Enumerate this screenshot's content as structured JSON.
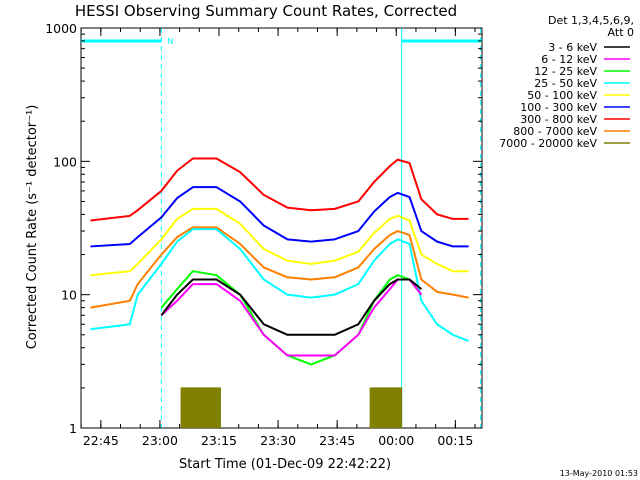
{
  "chart_data": {
    "type": "line",
    "title": "HESSI Observing Summary Count Rates, Corrected",
    "xlabel": "Start Time (01-Dec-09 22:42:22)",
    "ylabel": "Corrected Count Rate (s⁻¹ detector⁻¹)",
    "y_scale": "log",
    "ylim": [
      1,
      1000
    ],
    "xlim_minutes": [
      -2.4,
      99.4
    ],
    "x_ticks": [
      "22:45",
      "23:00",
      "23:15",
      "23:30",
      "23:45",
      "00:00",
      "00:15"
    ],
    "y_ticks": [
      "1",
      "10",
      "100",
      "1000"
    ],
    "grid": false,
    "legend_placement": "right",
    "legend_header": [
      "Det 1,3,4,5,6,9,",
      "Att 0"
    ],
    "timestamp": "13-May-2010 01:53",
    "bar_flag_label": "N",
    "night_markers": {
      "color": "#00ffff",
      "bars": [
        [
          -2.4,
          18
        ],
        [
          79,
          99.4
        ]
      ],
      "dashed_lines": [
        18,
        99
      ]
    },
    "series": [
      {
        "name": "3 - 6 keV",
        "color": "#000000",
        "x": [
          0,
          10,
          12,
          18,
          22,
          26,
          32,
          38,
          44,
          50,
          56,
          62,
          68,
          72,
          76,
          78,
          81,
          84,
          88,
          92,
          96
        ],
        "y": [
          null,
          null,
          null,
          7,
          10,
          13,
          13,
          10,
          6,
          5,
          5,
          5,
          6,
          9,
          12,
          13,
          13,
          11,
          null,
          null,
          null
        ]
      },
      {
        "name": "6 - 12 keV",
        "color": "#ff00ff",
        "x": [
          0,
          10,
          12,
          18,
          22,
          26,
          32,
          38,
          44,
          50,
          56,
          62,
          68,
          72,
          76,
          78,
          81,
          84,
          88,
          92,
          96
        ],
        "y": [
          null,
          null,
          null,
          7,
          9,
          12,
          12,
          9,
          5,
          3.5,
          3.5,
          3.5,
          5,
          8,
          11,
          13,
          13,
          10,
          null,
          null,
          null
        ]
      },
      {
        "name": "12 - 25 keV",
        "color": "#00ff00",
        "x": [
          0,
          10,
          12,
          18,
          22,
          26,
          32,
          38,
          44,
          50,
          56,
          62,
          68,
          72,
          76,
          78,
          81,
          84,
          88,
          92,
          96
        ],
        "y": [
          null,
          null,
          null,
          8,
          11,
          15,
          14,
          10,
          5,
          3.5,
          3,
          3.5,
          5,
          9,
          13,
          14,
          13,
          10,
          null,
          null,
          null
        ]
      },
      {
        "name": "25 - 50 keV",
        "color": "#00ffff",
        "x": [
          0,
          10,
          12,
          18,
          22,
          26,
          32,
          38,
          44,
          50,
          56,
          62,
          68,
          72,
          76,
          78,
          81,
          84,
          88,
          92,
          96
        ],
        "y": [
          5.5,
          6,
          10,
          17,
          25,
          31,
          31,
          22,
          13,
          10,
          9.5,
          10,
          12,
          18,
          24,
          26,
          24,
          9,
          6,
          5,
          4.5
        ]
      },
      {
        "name": "50 - 100 keV",
        "color": "#ffff00",
        "x": [
          0,
          10,
          12,
          18,
          22,
          26,
          32,
          38,
          44,
          50,
          56,
          62,
          68,
          72,
          76,
          78,
          81,
          84,
          88,
          92,
          96
        ],
        "y": [
          14,
          15,
          17,
          26,
          37,
          44,
          44,
          34,
          22,
          18,
          17,
          18,
          21,
          29,
          37,
          39,
          36,
          20,
          17,
          15,
          15
        ]
      },
      {
        "name": "100 - 300 keV",
        "color": "#0000ff",
        "x": [
          0,
          10,
          12,
          18,
          22,
          26,
          32,
          38,
          44,
          50,
          56,
          62,
          68,
          72,
          76,
          78,
          81,
          84,
          88,
          92,
          96
        ],
        "y": [
          23,
          24,
          27,
          38,
          53,
          64,
          64,
          50,
          33,
          26,
          25,
          26,
          30,
          42,
          54,
          58,
          54,
          30,
          25,
          23,
          23
        ]
      },
      {
        "name": "300 - 800 keV",
        "color": "#ff0000",
        "x": [
          0,
          10,
          12,
          18,
          22,
          26,
          32,
          38,
          44,
          50,
          56,
          62,
          68,
          72,
          76,
          78,
          81,
          84,
          88,
          92,
          96
        ],
        "y": [
          36,
          39,
          43,
          60,
          85,
          105,
          105,
          83,
          56,
          45,
          43,
          44,
          50,
          70,
          92,
          103,
          97,
          52,
          40,
          37,
          37
        ]
      },
      {
        "name": "800 - 7000 keV",
        "color": "#ff7f00",
        "x": [
          0,
          10,
          12,
          18,
          22,
          26,
          32,
          38,
          44,
          50,
          56,
          62,
          68,
          72,
          76,
          78,
          81,
          84,
          88,
          92,
          96
        ],
        "y": [
          8,
          9,
          12,
          20,
          27,
          32,
          32,
          24,
          16,
          13.5,
          13,
          13.5,
          16,
          22,
          28,
          30,
          28,
          13,
          10.5,
          10,
          9.5
        ]
      },
      {
        "name": "7000 - 20000 keV",
        "color": "#7f7f00",
        "x": [
          0,
          22,
          23,
          33,
          34,
          70,
          71,
          79,
          80,
          96
        ],
        "y": [
          null,
          null,
          2,
          2,
          null,
          null,
          2,
          2,
          null,
          null
        ]
      }
    ]
  }
}
